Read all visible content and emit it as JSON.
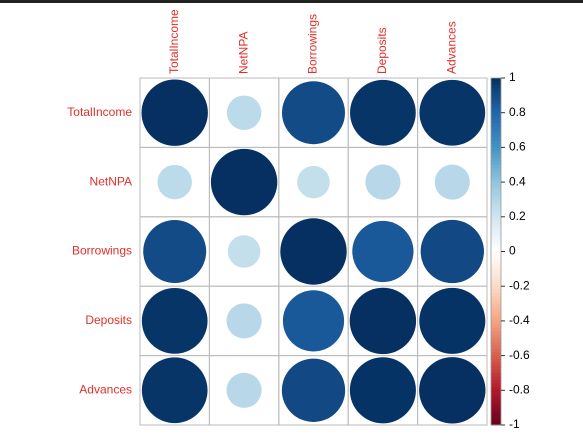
{
  "chart_data": {
    "type": "corrplot",
    "variables": [
      "TotalIncome",
      "NetNPA",
      "Borrowings",
      "Deposits",
      "Advances"
    ],
    "matrix": [
      [
        1,
        0.27,
        0.9,
        0.98,
        0.98
      ],
      [
        0.27,
        1,
        0.24,
        0.28,
        0.28
      ],
      [
        0.9,
        0.24,
        1,
        0.85,
        0.91
      ],
      [
        0.98,
        0.28,
        0.85,
        1,
        0.99
      ],
      [
        0.98,
        0.28,
        0.91,
        0.99,
        1
      ]
    ],
    "clim": [
      -1,
      1
    ],
    "colorbar_ticks": [
      1,
      0.8,
      0.6,
      0.4,
      0.2,
      0,
      -0.2,
      -0.4,
      -0.6,
      -0.8,
      -1
    ],
    "palette": [
      "#67001F",
      "#B2182B",
      "#D6604D",
      "#F4A582",
      "#FDDBC7",
      "#FFFFFF",
      "#D1E5F0",
      "#92C5DE",
      "#4393C3",
      "#2166AC",
      "#053061"
    ],
    "label_color": "#e0302a"
  }
}
